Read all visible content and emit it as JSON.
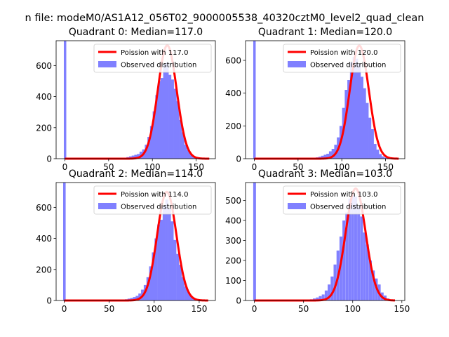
{
  "figure_title": "n file: modeM0/AS1A12_056T02_9000005538_40320cztM0_level2_quad_clean",
  "colors": {
    "fit": "#ff0000",
    "hist": "#8080ff",
    "axis": "#000000",
    "background": "#ffffff"
  },
  "chart_data": [
    {
      "type": "bar",
      "title": "Quadrant 0: Median=117.0",
      "xlim": [
        -10,
        172
      ],
      "ylim": [
        0,
        760
      ],
      "xticks": [
        0,
        50,
        100,
        150
      ],
      "yticks": [
        0,
        200,
        400,
        600
      ],
      "legend": [
        "Poission with 117.0",
        "Observed distribution"
      ],
      "legend_position": "upper right",
      "median": 117.0,
      "fit_mean": 117.0,
      "fit_peak": 730,
      "fit_sigma": 10.8,
      "fit_xrange": [
        0,
        165
      ],
      "zero_bin_height": 760,
      "bin_width": 3.3,
      "bins_x": [
        63,
        66,
        69,
        72,
        75,
        78,
        81,
        84,
        87,
        90,
        93,
        96,
        99,
        102,
        105,
        108,
        111,
        114,
        117,
        120,
        123,
        126,
        129,
        132,
        135,
        138,
        141,
        144,
        147,
        150,
        153,
        156,
        159,
        162
      ],
      "bins_y": [
        3,
        4,
        6,
        10,
        15,
        20,
        25,
        30,
        45,
        60,
        90,
        140,
        210,
        305,
        410,
        500,
        520,
        610,
        620,
        540,
        510,
        450,
        370,
        250,
        170,
        90,
        55,
        30,
        15,
        8,
        4,
        2,
        1,
        0
      ]
    },
    {
      "type": "bar",
      "title": "Quadrant 1: Median=120.0",
      "xlim": [
        -10,
        172
      ],
      "ylim": [
        0,
        720
      ],
      "xticks": [
        0,
        50,
        100,
        150
      ],
      "yticks": [
        0,
        200,
        400,
        600
      ],
      "legend": [
        "Poission with 120.0",
        "Observed distribution"
      ],
      "legend_position": "upper right",
      "median": 120.0,
      "fit_mean": 120.0,
      "fit_peak": 690,
      "fit_sigma": 10.9,
      "fit_xrange": [
        0,
        165
      ],
      "zero_bin_height": 720,
      "bin_width": 3.3,
      "bins_x": [
        66,
        69,
        72,
        75,
        78,
        81,
        84,
        87,
        90,
        93,
        96,
        99,
        102,
        105,
        108,
        111,
        114,
        117,
        120,
        123,
        126,
        129,
        132,
        135,
        138,
        141,
        144,
        147,
        150,
        153,
        156,
        159,
        162
      ],
      "bins_y": [
        3,
        5,
        8,
        12,
        18,
        24,
        30,
        45,
        60,
        85,
        130,
        200,
        310,
        420,
        480,
        590,
        620,
        610,
        580,
        500,
        430,
        340,
        250,
        180,
        90,
        55,
        28,
        14,
        7,
        3,
        2,
        1,
        0
      ]
    },
    {
      "type": "bar",
      "title": "Quadrant 2: Median=114.0",
      "xlim": [
        -9,
        168
      ],
      "ylim": [
        0,
        760
      ],
      "xticks": [
        0,
        50,
        100,
        150
      ],
      "yticks": [
        0,
        200,
        400,
        600
      ],
      "legend": [
        "Poission with 114.0",
        "Observed distribution"
      ],
      "legend_position": "upper right",
      "median": 114.0,
      "fit_mean": 114.0,
      "fit_peak": 700,
      "fit_sigma": 10.7,
      "fit_xrange": [
        0,
        160
      ],
      "zero_bin_height": 760,
      "bin_width": 3.2,
      "bins_x": [
        63,
        66,
        69,
        72,
        75,
        78,
        81,
        84,
        87,
        90,
        93,
        96,
        99,
        102,
        105,
        108,
        111,
        114,
        117,
        120,
        123,
        126,
        129,
        132,
        135,
        138,
        141,
        144,
        147,
        150,
        153,
        156
      ],
      "bins_y": [
        3,
        5,
        8,
        12,
        16,
        22,
        30,
        45,
        70,
        100,
        150,
        220,
        310,
        400,
        490,
        520,
        610,
        650,
        590,
        510,
        390,
        300,
        230,
        150,
        90,
        55,
        30,
        15,
        8,
        4,
        2,
        1
      ]
    },
    {
      "type": "bar",
      "title": "Quadrant 3: Median=103.0",
      "xlim": [
        -9,
        153
      ],
      "ylim": [
        0,
        590
      ],
      "xticks": [
        0,
        50,
        100,
        150
      ],
      "yticks": [
        0,
        100,
        200,
        300,
        400,
        500
      ],
      "legend": [
        "Poission with 103.0",
        "Observed distribution"
      ],
      "legend_position": "upper right",
      "median": 103.0,
      "fit_mean": 103.0,
      "fit_peak": 560,
      "fit_sigma": 10.2,
      "fit_xrange": [
        0,
        143
      ],
      "zero_bin_height": 590,
      "bin_width": 2.9,
      "bins_x": [
        52,
        55,
        58,
        61,
        64,
        67,
        70,
        73,
        76,
        79,
        82,
        85,
        88,
        91,
        94,
        97,
        100,
        103,
        106,
        109,
        112,
        115,
        118,
        121,
        124,
        127,
        130,
        133,
        136,
        139
      ],
      "bins_y": [
        2,
        4,
        6,
        10,
        15,
        22,
        30,
        50,
        80,
        120,
        180,
        250,
        320,
        400,
        440,
        510,
        530,
        520,
        470,
        420,
        340,
        280,
        200,
        150,
        110,
        80,
        40,
        25,
        10,
        4
      ]
    }
  ]
}
